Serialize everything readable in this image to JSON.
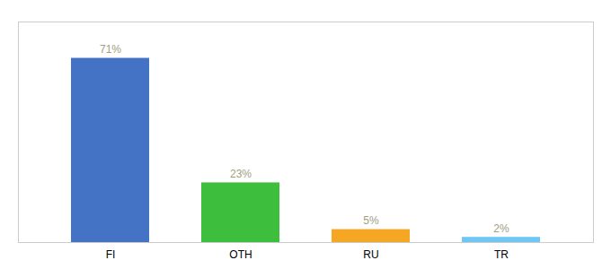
{
  "chart_data": {
    "type": "bar",
    "categories": [
      "FI",
      "OTH",
      "RU",
      "TR"
    ],
    "values": [
      71,
      23,
      5,
      2
    ],
    "value_labels": [
      "71%",
      "23%",
      "5%",
      "2%"
    ],
    "colors": [
      "#4472c4",
      "#3dbf3d",
      "#f5a623",
      "#6ec6f5"
    ],
    "ylim": [
      0,
      85
    ],
    "data_labels": true,
    "tick_labels": "x"
  }
}
